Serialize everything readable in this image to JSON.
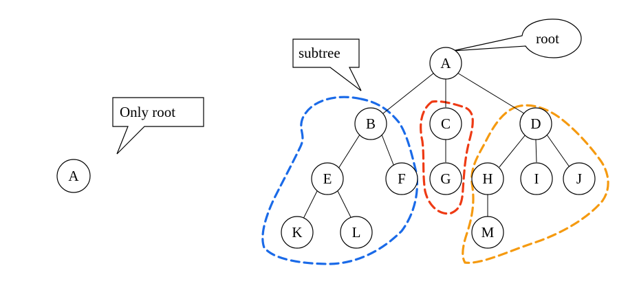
{
  "callouts": {
    "only_root": "Only root",
    "subtree": "subtree",
    "root": "root"
  },
  "nodes": {
    "single_a": "A",
    "a": "A",
    "b": "B",
    "c": "C",
    "d": "D",
    "e": "E",
    "f": "F",
    "g": "G",
    "h": "H",
    "i": "I",
    "j": "J",
    "k": "K",
    "l": "L",
    "m": "M"
  },
  "colors": {
    "subtree_b": "#1a6ae8",
    "subtree_c": "#ee3a14",
    "subtree_d": "#f59a10"
  }
}
